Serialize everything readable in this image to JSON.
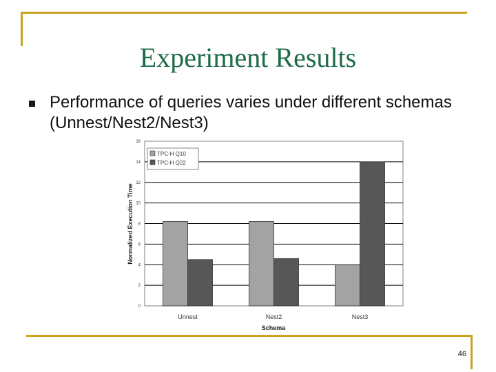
{
  "slide": {
    "title": "Experiment Results",
    "bullet": "Performance of queries varies under different schemas (Unnest/Nest2/Nest3)",
    "page_number": "46"
  },
  "colors": {
    "frame": "#c8a420",
    "title": "#1e6b48"
  },
  "chart_data": {
    "type": "bar",
    "categories": [
      "Unnest",
      "Nest2",
      "Nest3"
    ],
    "series": [
      {
        "name": "TPC-H Q10",
        "values": [
          8.2,
          8.2,
          4.0
        ],
        "color": "#a3a3a3"
      },
      {
        "name": "TPC-H Q22",
        "values": [
          4.5,
          4.6,
          14.0
        ],
        "color": "#575757"
      }
    ],
    "xlabel": "Schema",
    "ylabel": "Normalized Execution Time",
    "ylim": [
      0,
      16
    ],
    "yticks": [
      "0",
      "2",
      "4",
      "6",
      "8",
      "10",
      "12",
      "14",
      "16"
    ],
    "grid": true,
    "legend_position": "top-left"
  }
}
